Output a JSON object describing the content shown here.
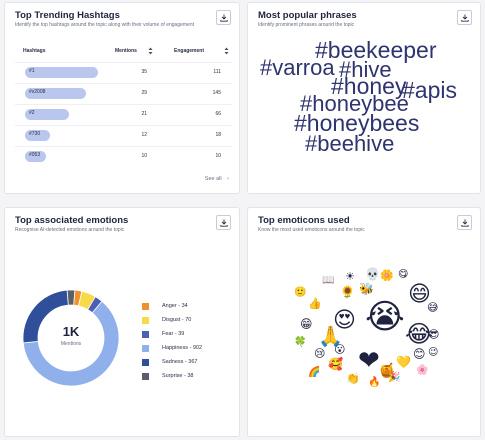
{
  "hashtags_card": {
    "title": "Top Trending Hashtags",
    "subtitle": "Identify the top hashtags around the topic along with their volume of engagement",
    "columns": {
      "hashtag": "Hashtags",
      "mentions": "Mentions",
      "engagement": "Engagement"
    },
    "rows": [
      {
        "tag": "#1",
        "mentions": "35",
        "engagement": "111",
        "fill": 1.0
      },
      {
        "tag": "#x2008",
        "mentions": "29",
        "engagement": "145",
        "fill": 0.83
      },
      {
        "tag": "#2",
        "mentions": "21",
        "engagement": "66",
        "fill": 0.6
      },
      {
        "tag": "#730",
        "mentions": "12",
        "engagement": "18",
        "fill": 0.34
      },
      {
        "tag": "#053",
        "mentions": "10",
        "engagement": "10",
        "fill": 0.29
      }
    ],
    "see_all": "See all"
  },
  "phrases_card": {
    "title": "Most popular phrases",
    "subtitle": "Identify prominent phrases around the topic",
    "words": [
      "#beekeeper",
      "#varroa",
      "#hive",
      "#honey",
      "#apis",
      "#honeybee",
      "#honeybees",
      "#beehive"
    ]
  },
  "emotions_card": {
    "title": "Top associated emotions",
    "subtitle": "Recognise AI-detected emotions around the topic",
    "center_value": "1K",
    "center_label": "Mentions",
    "legend": [
      {
        "label": "Anger - 34",
        "color": "#f0922b"
      },
      {
        "label": "Disgust - 70",
        "color": "#f7d94a"
      },
      {
        "label": "Fear - 39",
        "color": "#4a5fb5"
      },
      {
        "label": "Happiness - 902",
        "color": "#8fb0ea"
      },
      {
        "label": "Sadness - 367",
        "color": "#2f4f9a"
      },
      {
        "label": "Surprise - 38",
        "color": "#5a5f6b"
      }
    ]
  },
  "chart_data": {
    "type": "pie",
    "categories": [
      "Anger",
      "Disgust",
      "Fear",
      "Happiness",
      "Sadness",
      "Surprise"
    ],
    "values": [
      34,
      70,
      39,
      902,
      367,
      38
    ],
    "title": "Top associated emotions"
  },
  "emoticons_card": {
    "title": "Top emoticons used",
    "subtitle": "Know the most used emoticons around the topic",
    "emojis": [
      "😭",
      "😍",
      "😄",
      "❤",
      "🙏",
      "😂",
      "🐝",
      "🌻",
      "🍯",
      "😊",
      "😁",
      "☀",
      "🌼",
      "💛",
      "👍",
      "😅",
      "😎",
      "🥰",
      "🎉",
      "👏",
      "🙂",
      "😢",
      "💀",
      "📖",
      "🌈",
      "😋",
      "🔥",
      "😮",
      "😉",
      "🌸",
      "🍀"
    ]
  }
}
